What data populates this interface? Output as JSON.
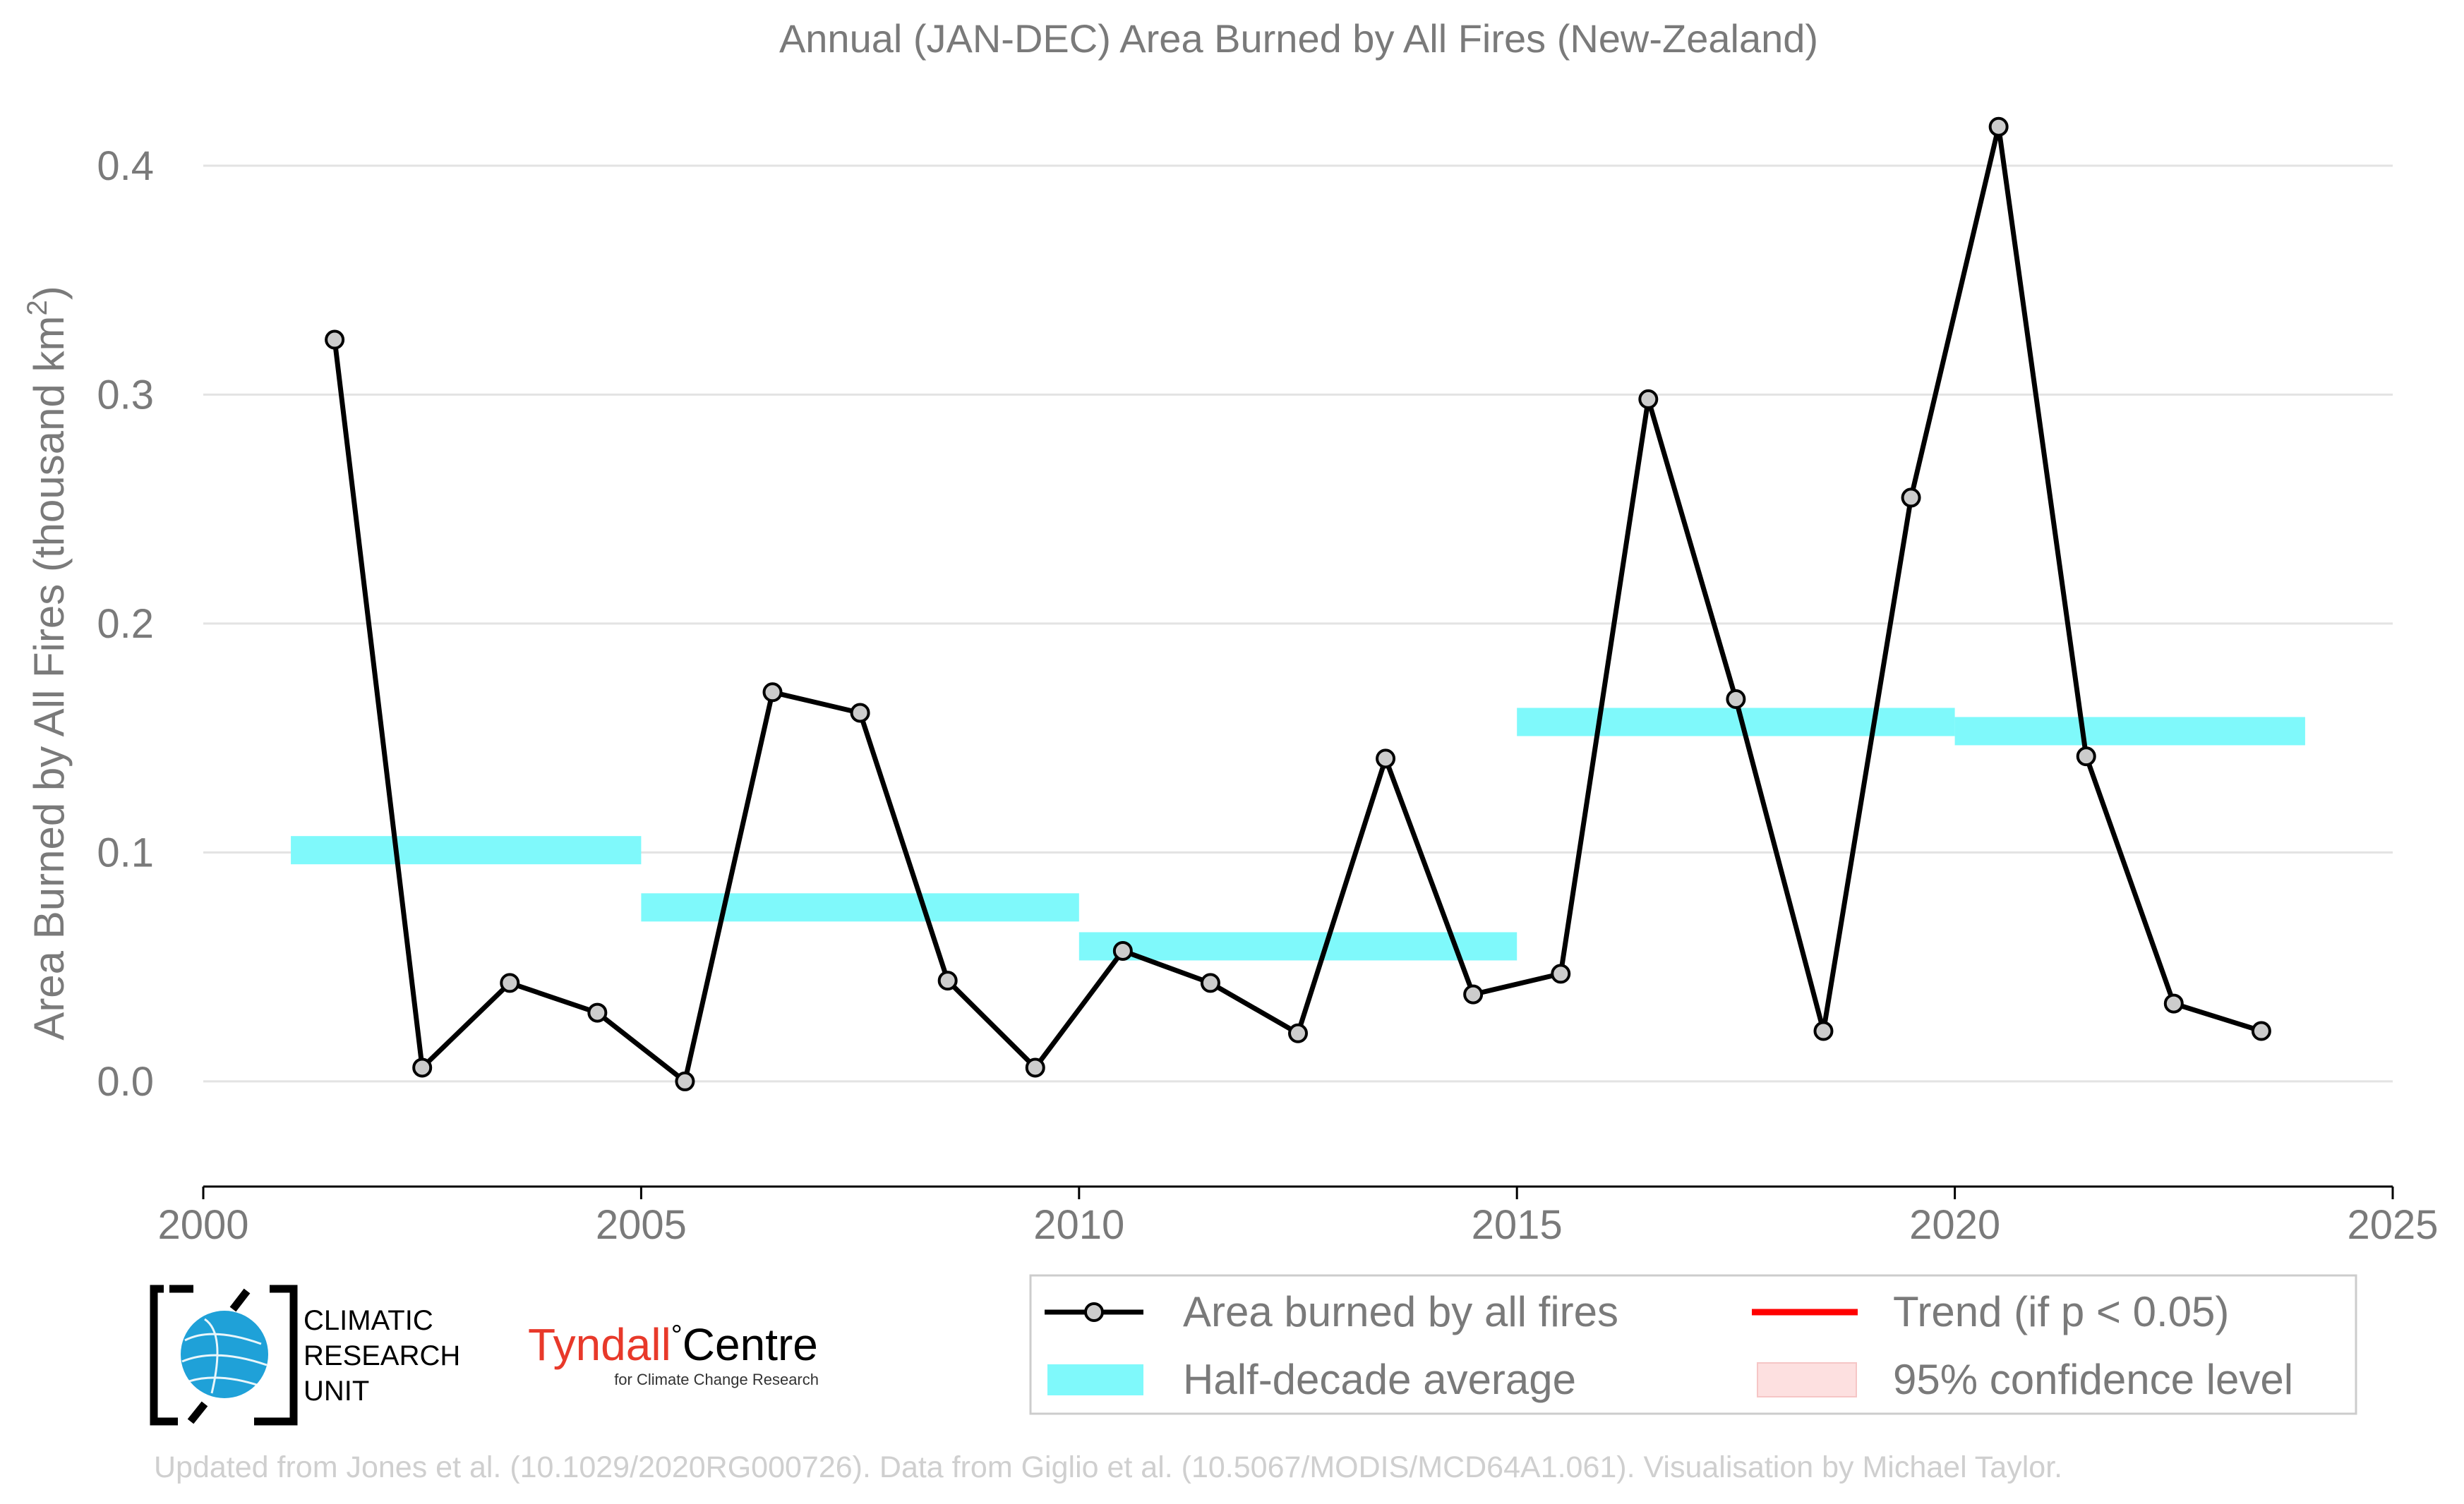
{
  "chart_data": {
    "type": "line",
    "title": "Annual (JAN-DEC) Area Burned by All Fires (New-Zealand)",
    "xlabel": "",
    "ylabel": "Area Burned by All Fires (thousand km",
    "ylabel_sup": "2",
    "ylabel_end": ")",
    "xlim": [
      2000,
      2025
    ],
    "ylim": [
      -0.033,
      0.42
    ],
    "x_ticks": [
      2000,
      2005,
      2010,
      2015,
      2020,
      2025
    ],
    "y_ticks": [
      0.0,
      0.1,
      0.2,
      0.3,
      0.4
    ],
    "y_tick_labels": [
      "0.0",
      "0.1",
      "0.2",
      "0.3",
      "0.4"
    ],
    "grid": "horizontal",
    "series": [
      {
        "name": "Area burned by all fires",
        "color": "#000000",
        "marker_fill": "#cccccc",
        "x": [
          2001.5,
          2002.5,
          2003.5,
          2004.5,
          2005.5,
          2006.5,
          2007.5,
          2008.5,
          2009.5,
          2010.5,
          2011.5,
          2012.5,
          2013.5,
          2014.5,
          2015.5,
          2016.5,
          2017.5,
          2018.5,
          2019.5,
          2020.5,
          2021.5,
          2022.5,
          2023.5
        ],
        "values": [
          0.324,
          0.006,
          0.043,
          0.03,
          0.0,
          0.17,
          0.161,
          0.044,
          0.006,
          0.057,
          0.043,
          0.021,
          0.141,
          0.038,
          0.047,
          0.298,
          0.167,
          0.022,
          0.255,
          0.417,
          0.142,
          0.034,
          0.022
        ]
      }
    ],
    "half_decade_averages": {
      "name": "Half-decade average",
      "color": "#7ff9fb",
      "segments": [
        {
          "x0": 2001,
          "x1": 2005,
          "value": 0.101
        },
        {
          "x0": 2005,
          "x1": 2010,
          "value": 0.076
        },
        {
          "x0": 2010,
          "x1": 2015,
          "value": 0.059
        },
        {
          "x0": 2015,
          "x1": 2020,
          "value": 0.157
        },
        {
          "x0": 2020,
          "x1": 2024,
          "value": 0.153
        }
      ]
    },
    "legend": {
      "placement": "bottom-right",
      "entries": [
        {
          "label": "Area burned by all fires",
          "kind": "line-marker",
          "color": "#000000"
        },
        {
          "label": "Trend (if p < 0.05)",
          "kind": "line",
          "color": "#ff0000"
        },
        {
          "label": "Half-decade average",
          "kind": "band",
          "color": "#7ff9fb"
        },
        {
          "label": "95% confidence level",
          "kind": "band",
          "color": "#fde0e0"
        }
      ]
    }
  },
  "logos": {
    "cru_lines": [
      "CLIMATIC",
      "RESEARCH",
      "UNIT"
    ],
    "tyndall_name": "Tyndall",
    "tyndall_degree": "°",
    "tyndall_centre": "Centre",
    "tyndall_sub": "for Climate Change Research"
  },
  "credit": "Updated from Jones et al. (10.1029/2020RG000726). Data from Giglio et al. (10.5067/MODIS/MCD64A1.061). Visualisation by Michael Taylor."
}
